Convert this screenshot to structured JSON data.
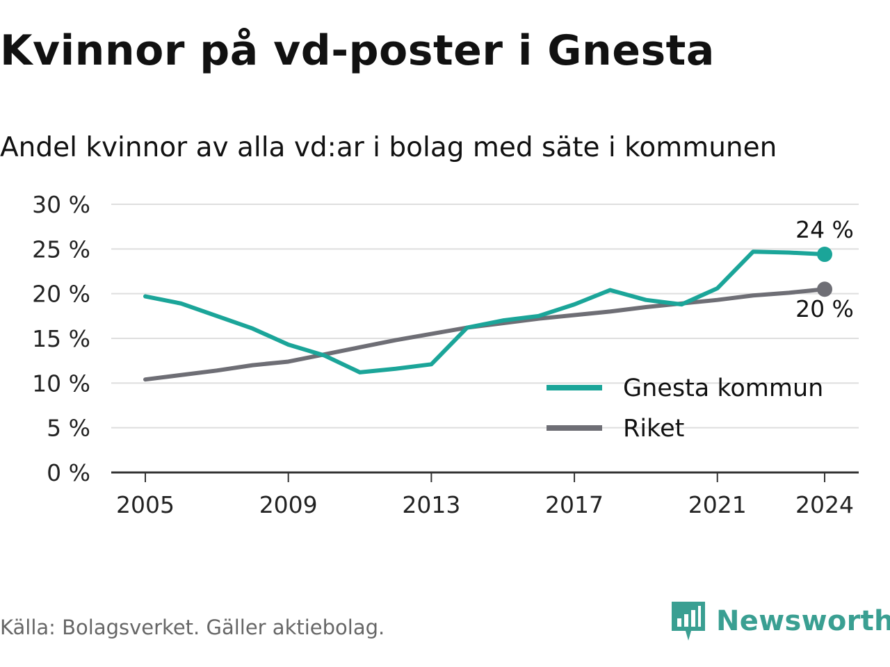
{
  "title": "Kvinnor på vd-poster i Gnesta",
  "subtitle": "Andel kvinnor av alla vd:ar i bolag med säte i kommunen",
  "source": "Källa: Bolagsverket. Gäller aktiebolag.",
  "brand": {
    "name": "Newsworthy",
    "icon": "newsworthy-logo-icon",
    "color": "#3a9f92"
  },
  "chart_data": {
    "type": "line",
    "x": [
      2005,
      2006,
      2007,
      2008,
      2009,
      2010,
      2011,
      2012,
      2013,
      2014,
      2015,
      2016,
      2017,
      2018,
      2019,
      2020,
      2021,
      2022,
      2023,
      2024
    ],
    "series": [
      {
        "name": "Gnesta kommun",
        "color": "#1ba599",
        "values": [
          19.7,
          18.9,
          17.5,
          16.1,
          14.3,
          13.1,
          11.2,
          11.6,
          12.1,
          16.2,
          17.0,
          17.5,
          18.8,
          20.4,
          19.3,
          18.8,
          20.6,
          24.7,
          24.6,
          24.4
        ],
        "end_label": "24 %"
      },
      {
        "name": "Riket",
        "color": "#6e6e75",
        "values": [
          10.4,
          10.9,
          11.4,
          12.0,
          12.4,
          13.2,
          14.0,
          14.8,
          15.5,
          16.2,
          16.7,
          17.2,
          17.6,
          18.0,
          18.5,
          18.9,
          19.3,
          19.8,
          20.1,
          20.5
        ],
        "end_label": "20 %"
      }
    ],
    "ylim": [
      0,
      30
    ],
    "y_ticks": [
      0,
      5,
      10,
      15,
      20,
      25,
      30
    ],
    "y_tick_labels": [
      "0 %",
      "5 %",
      "10 %",
      "15 %",
      "20 %",
      "25 %",
      "30 %"
    ],
    "x_ticks": [
      2005,
      2009,
      2013,
      2017,
      2021,
      2024
    ],
    "x_tick_labels": [
      "2005",
      "2009",
      "2013",
      "2017",
      "2021",
      "2024"
    ],
    "xlabel": "",
    "ylabel": "",
    "grid": true,
    "legend_position": "bottom-right"
  }
}
